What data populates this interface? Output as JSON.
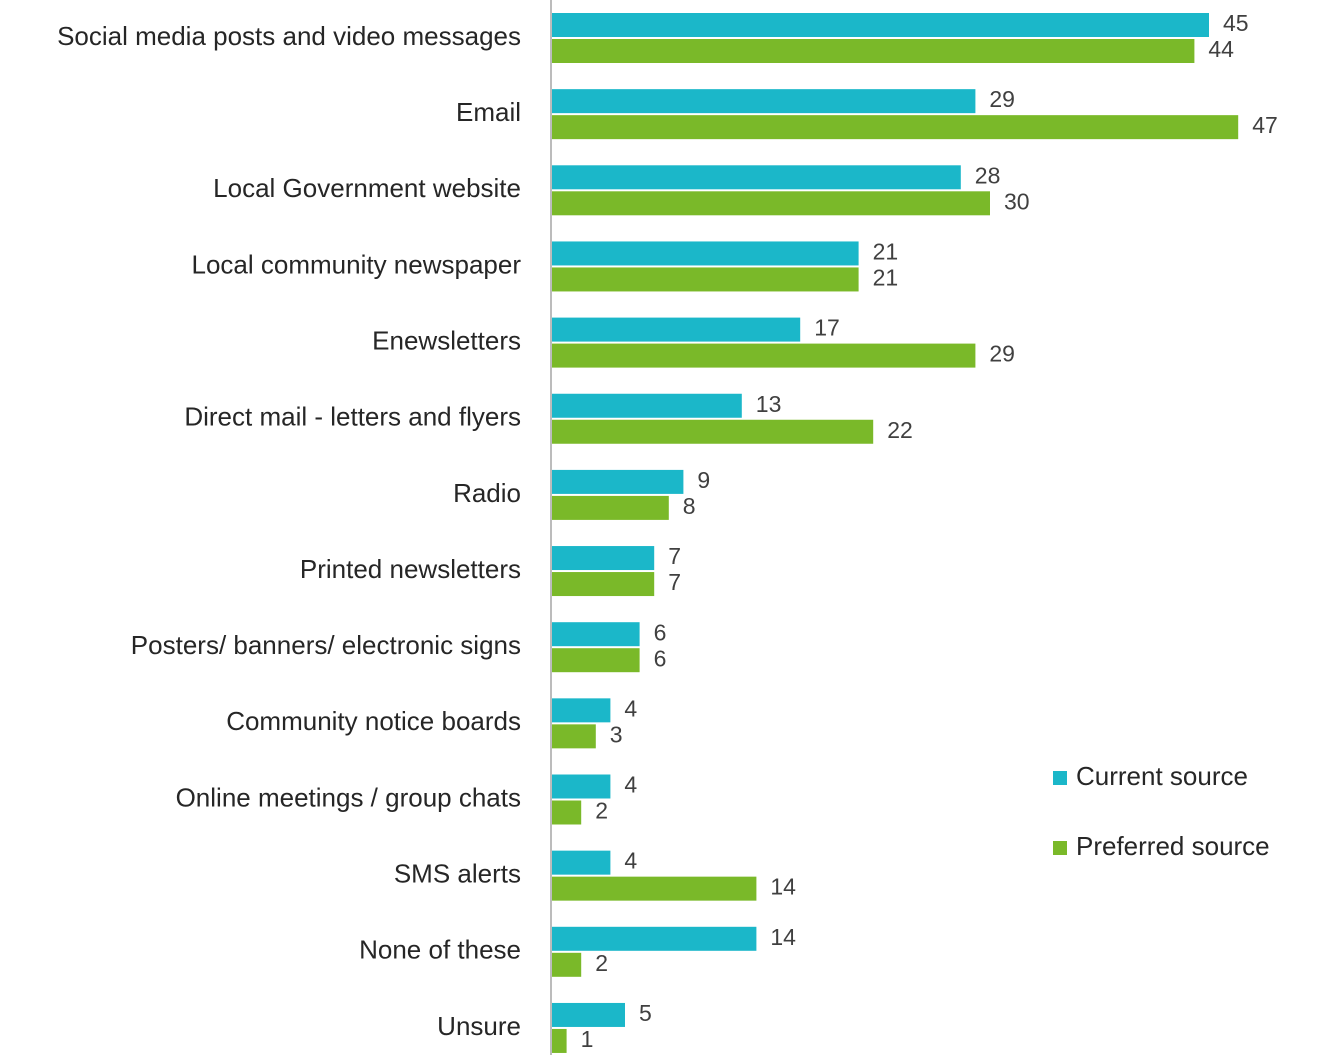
{
  "chart_data": {
    "type": "bar",
    "orientation": "horizontal",
    "categories": [
      "Social media posts and video messages",
      "Email",
      "Local Government website",
      "Local community newspaper",
      "Enewsletters",
      "Direct mail - letters and flyers",
      "Radio",
      "Printed newsletters",
      "Posters/ banners/ electronic signs",
      "Community notice boards",
      "Online meetings / group chats",
      "SMS alerts",
      "None of these",
      "Unsure"
    ],
    "series": [
      {
        "name": "Current source",
        "color": "#1BB7C9",
        "values": [
          45,
          29,
          28,
          21,
          17,
          13,
          9,
          7,
          6,
          4,
          4,
          4,
          14,
          5
        ]
      },
      {
        "name": "Preferred source",
        "color": "#7AB929",
        "values": [
          44,
          47,
          30,
          21,
          29,
          22,
          8,
          7,
          6,
          3,
          2,
          14,
          2,
          1
        ]
      }
    ],
    "xlim": [
      0,
      47
    ],
    "grid": false,
    "legend_position": "right"
  }
}
